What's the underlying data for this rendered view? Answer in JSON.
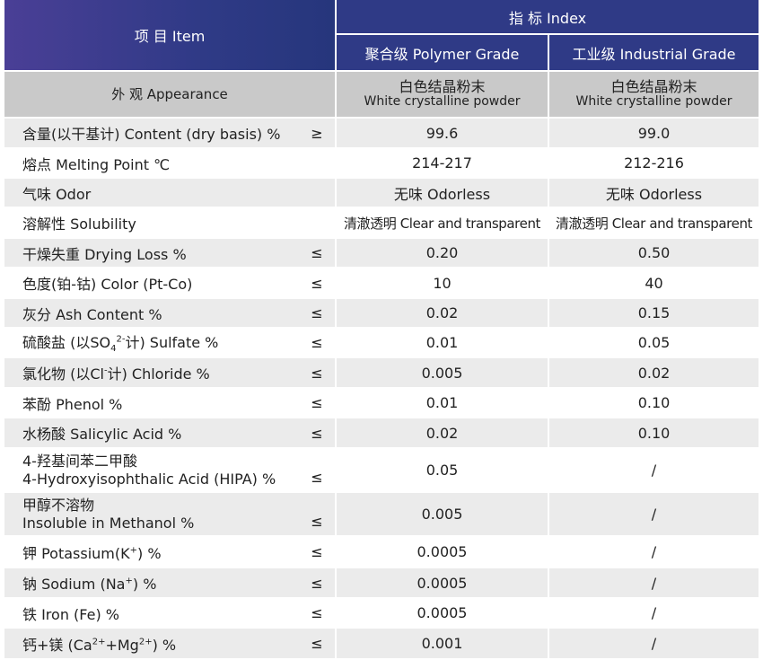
{
  "header": {
    "item_label": "项 目 Item",
    "index_label": "指 标 Index",
    "polymer_grade": "聚合级 Polymer Grade",
    "industrial_grade": "工业级 Industrial Grade"
  },
  "appearance": {
    "label": "外 观 Appearance",
    "polymer_cn": "白色结晶粉末",
    "polymer_en": "White crystalline powder",
    "industrial_cn": "白色结晶粉末",
    "industrial_en": "White crystalline powder"
  },
  "rows": [
    {
      "label": "含量(以干基计) Content (dry basis) %",
      "sym": "≥",
      "polymer": "99.6",
      "industrial": "99.0"
    },
    {
      "label": "熔点 Melting Point ℃",
      "sym": "",
      "polymer": "214-217",
      "industrial": "212-216"
    },
    {
      "label": "气味 Odor",
      "sym": "",
      "polymer": "无味 Odorless",
      "industrial": "无味 Odorless"
    },
    {
      "label": "溶解性 Solubility",
      "sym": "",
      "polymer": "清澈透明 Clear and transparent",
      "industrial": "清澈透明 Clear and transparent"
    },
    {
      "label": "干燥失重 Drying Loss %",
      "sym": "≤",
      "polymer": "0.20",
      "industrial": "0.50"
    },
    {
      "label": "色度(铂-钴) Color (Pt-Co)",
      "sym": "≤",
      "polymer": "10",
      "industrial": "40"
    },
    {
      "label": "灰分 Ash Content %",
      "sym": "≤",
      "polymer": "0.02",
      "industrial": "0.15"
    },
    {
      "label_a": "硫酸盐 (以SO",
      "label_sub": "4",
      "label_sup": "2-",
      "label_b": "计) Sulfate %",
      "sym": "≤",
      "polymer": "0.01",
      "industrial": "0.05"
    },
    {
      "label_a": "氯化物 (以Cl",
      "label_sup": "-",
      "label_b": "计) Chloride %",
      "sym": "≤",
      "polymer": "0.005",
      "industrial": "0.02"
    },
    {
      "label": "苯酚 Phenol %",
      "sym": "≤",
      "polymer": "0.01",
      "industrial": "0.10"
    },
    {
      "label": "水杨酸 Salicylic Acid %",
      "sym": "≤",
      "polymer": "0.02",
      "industrial": "0.10"
    },
    {
      "label_cn": "4-羟基间苯二甲酸",
      "label_en": "4-Hydroxyisophthalic Acid (HIPA) %",
      "sym": "≤",
      "polymer": "0.05",
      "industrial": "/"
    },
    {
      "label_cn": "甲醇不溶物",
      "label_en": "Insoluble in Methanol %",
      "sym": "≤",
      "polymer": "0.005",
      "industrial": "/"
    },
    {
      "label_a": "钾 Potassium(K",
      "label_sup": "+",
      "label_b": ") %",
      "sym": "≤",
      "polymer": "0.0005",
      "industrial": "/"
    },
    {
      "label_a": "钠 Sodium (Na",
      "label_sup": "+",
      "label_b": ") %",
      "sym": "≤",
      "polymer": "0.0005",
      "industrial": "/"
    },
    {
      "label": "铁 Iron (Fe) %",
      "sym": "≤",
      "polymer": "0.0005",
      "industrial": "/"
    },
    {
      "label_a": "钙+镁 (Ca",
      "label_sup": "2+",
      "label_mid": "+Mg",
      "label_sup2": "2+",
      "label_b": ") %",
      "sym": "≤",
      "polymer": "0.001",
      "industrial": "/"
    }
  ]
}
